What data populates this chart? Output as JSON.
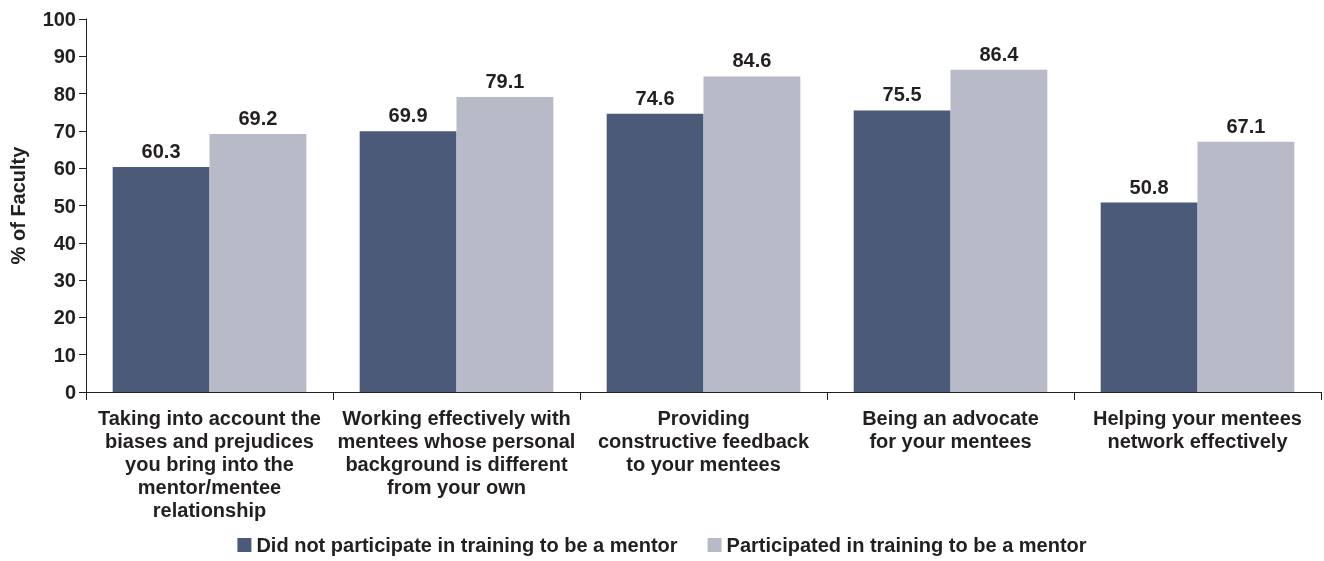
{
  "chart_data": {
    "type": "bar",
    "ylabel": "% of Faculty",
    "categories": [
      "Taking into account the\nbiases and prejudices\nyou bring into the\nmentor/mentee\nrelationship",
      "Working effectively with\nmentees whose personal\nbackground is different\nfrom your own",
      "Providing\nconstructive feedback\nto your mentees",
      "Being an advocate\nfor your mentees",
      "Helping your mentees\nnetwork effectively"
    ],
    "series": [
      {
        "name": "Did not participate in training to be a mentor",
        "color": "#4a5a78",
        "values": [
          60.3,
          69.9,
          74.6,
          75.5,
          50.8
        ]
      },
      {
        "name": "Participated in training to be a mentor",
        "color": "#b8bac8",
        "values": [
          69.2,
          79.1,
          84.6,
          86.4,
          67.1
        ]
      }
    ],
    "ylim": [
      0,
      100
    ],
    "yticks": [
      0,
      10,
      20,
      30,
      40,
      50,
      60,
      70,
      80,
      90,
      100
    ],
    "data_labels": true,
    "grid": false,
    "legend": "bottom"
  }
}
